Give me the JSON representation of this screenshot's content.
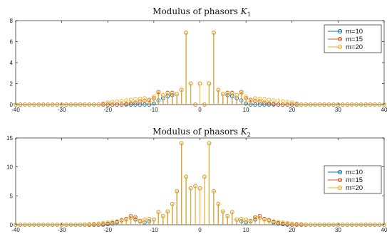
{
  "chart_data": [
    {
      "type": "stem",
      "title_prefix": "Modulus of phasors ",
      "title_symbol": "K",
      "title_subscript": "1",
      "xlim": [
        -40,
        40
      ],
      "ylim": [
        0,
        8
      ],
      "xticks": [
        "-40",
        "-30",
        "-20",
        "-10",
        "0",
        "10",
        "20",
        "30",
        "40"
      ],
      "yticks": [
        "0",
        "2",
        "4",
        "6",
        "8"
      ],
      "legend_position": "top-right",
      "x": [
        -40,
        -39,
        -38,
        -37,
        -36,
        -35,
        -34,
        -33,
        -32,
        -31,
        -30,
        -29,
        -28,
        -27,
        -26,
        -25,
        -24,
        -23,
        -22,
        -21,
        -20,
        -19,
        -18,
        -17,
        -16,
        -15,
        -14,
        -13,
        -12,
        -11,
        -10,
        -9,
        -8,
        -7,
        -6,
        -5,
        -4,
        -3,
        -2,
        -1,
        0,
        1,
        2,
        3,
        4,
        5,
        6,
        7,
        8,
        9,
        10,
        11,
        12,
        13,
        14,
        15,
        16,
        17,
        18,
        19,
        20,
        21,
        22,
        23,
        24,
        25,
        26,
        27,
        28,
        29,
        30,
        31,
        32,
        33,
        34,
        35,
        36,
        37,
        38,
        39,
        40
      ],
      "series": [
        {
          "name": "m=10",
          "color": "#0072BD",
          "values": [
            0,
            0,
            0,
            0,
            0,
            0,
            0,
            0,
            0,
            0,
            0,
            0,
            0,
            0,
            0,
            0,
            0,
            0,
            0,
            0,
            0,
            0,
            0,
            0,
            0,
            0,
            0,
            0,
            0,
            0,
            0.1,
            0.4,
            0.6,
            0.8,
            0.9,
            1.0,
            1.4,
            6.85,
            2.0,
            0,
            2.0,
            0,
            2.0,
            6.85,
            1.4,
            1.0,
            0.9,
            0.8,
            0.6,
            0.4,
            0.1,
            0,
            0,
            0,
            0,
            0,
            0,
            0,
            0,
            0,
            0,
            0,
            0,
            0,
            0,
            0,
            0,
            0,
            0,
            0,
            0,
            0,
            0,
            0,
            0,
            0,
            0,
            0,
            0,
            0,
            0
          ]
        },
        {
          "name": "m=15",
          "color": "#D95319",
          "values": [
            0,
            0,
            0,
            0,
            0,
            0,
            0,
            0,
            0,
            0,
            0,
            0,
            0,
            0,
            0,
            0,
            0,
            0,
            0,
            0,
            0,
            0,
            0,
            0,
            0.05,
            0.1,
            0.2,
            0.3,
            0.35,
            0.45,
            0.6,
            1.2,
            0.9,
            1.1,
            1.1,
            1.0,
            1.4,
            6.85,
            2.0,
            0,
            2.0,
            0,
            2.0,
            6.85,
            1.4,
            1.0,
            1.1,
            1.1,
            0.9,
            1.2,
            0.6,
            0.45,
            0.35,
            0.3,
            0.2,
            0.1,
            0.05,
            0,
            0,
            0,
            0,
            0,
            0,
            0,
            0,
            0,
            0,
            0,
            0,
            0,
            0,
            0,
            0,
            0,
            0,
            0,
            0,
            0,
            0,
            0,
            0
          ]
        },
        {
          "name": "m=20",
          "color": "#EDB120",
          "values": [
            0,
            0,
            0,
            0,
            0,
            0,
            0,
            0,
            0,
            0,
            0,
            0,
            0,
            0,
            0,
            0,
            0,
            0,
            0,
            0.1,
            0.2,
            0.25,
            0.3,
            0.35,
            0.4,
            0.45,
            0.5,
            0.55,
            0.6,
            0.3,
            0.75,
            1.05,
            0.9,
            1.15,
            1.15,
            1.0,
            1.4,
            6.85,
            2.0,
            0,
            2.0,
            0,
            2.0,
            6.85,
            1.4,
            1.0,
            1.15,
            1.15,
            0.9,
            1.05,
            0.75,
            0.3,
            0.6,
            0.55,
            0.5,
            0.45,
            0.4,
            0.35,
            0.3,
            0.25,
            0.2,
            0.1,
            0,
            0,
            0,
            0,
            0,
            0,
            0,
            0,
            0,
            0,
            0,
            0,
            0,
            0,
            0,
            0,
            0,
            0,
            0
          ]
        }
      ]
    },
    {
      "type": "stem",
      "title_prefix": "Modulus of phasors ",
      "title_symbol": "K",
      "title_subscript": "2",
      "xlim": [
        -40,
        40
      ],
      "ylim": [
        0,
        15
      ],
      "xticks": [
        "-40",
        "-30",
        "-20",
        "-10",
        "0",
        "10",
        "20",
        "30",
        "40"
      ],
      "yticks": [
        "0",
        "5",
        "10",
        "15"
      ],
      "legend_position": "top-right",
      "x": [
        -40,
        -39,
        -38,
        -37,
        -36,
        -35,
        -34,
        -33,
        -32,
        -31,
        -30,
        -29,
        -28,
        -27,
        -26,
        -25,
        -24,
        -23,
        -22,
        -21,
        -20,
        -19,
        -18,
        -17,
        -16,
        -15,
        -14,
        -13,
        -12,
        -11,
        -10,
        -9,
        -8,
        -7,
        -6,
        -5,
        -4,
        -3,
        -2,
        -1,
        0,
        1,
        2,
        3,
        4,
        5,
        6,
        7,
        8,
        9,
        10,
        11,
        12,
        13,
        14,
        15,
        16,
        17,
        18,
        19,
        20,
        21,
        22,
        23,
        24,
        25,
        26,
        27,
        28,
        29,
        30,
        31,
        32,
        33,
        34,
        35,
        36,
        37,
        38,
        39,
        40
      ],
      "series": [
        {
          "name": "m=10",
          "color": "#0072BD",
          "values": [
            0,
            0,
            0,
            0,
            0,
            0,
            0,
            0,
            0,
            0,
            0,
            0,
            0,
            0,
            0,
            0,
            0,
            0,
            0,
            0,
            0.1,
            0.2,
            0.4,
            0.8,
            1.0,
            1.2,
            0.9,
            0.6,
            0.4,
            0.6,
            0.9,
            2.2,
            1.5,
            2.3,
            3.6,
            5.8,
            14.1,
            8.3,
            6.3,
            6.7,
            6.3,
            8.3,
            14.1,
            5.8,
            3.6,
            2.3,
            1.5,
            2.2,
            0.9,
            0.6,
            0.4,
            0.6,
            0.9,
            1.2,
            1.0,
            0.8,
            0.4,
            0.2,
            0.1,
            0,
            0,
            0,
            0,
            0,
            0,
            0,
            0,
            0,
            0,
            0,
            0,
            0,
            0,
            0,
            0,
            0,
            0,
            0,
            0,
            0,
            0
          ]
        },
        {
          "name": "m=15",
          "color": "#D95319",
          "values": [
            0,
            0,
            0,
            0,
            0,
            0,
            0,
            0,
            0,
            0,
            0,
            0,
            0,
            0,
            0,
            0,
            0,
            0,
            0,
            0.1,
            0.2,
            0.3,
            0.5,
            0.8,
            1.0,
            1.5,
            1.3,
            0.6,
            0.9,
            1.0,
            0.9,
            2.2,
            1.5,
            2.3,
            3.6,
            5.8,
            14.1,
            8.3,
            6.3,
            6.7,
            6.3,
            8.3,
            14.1,
            5.8,
            3.6,
            2.3,
            1.5,
            2.2,
            0.9,
            1.0,
            0.9,
            0.6,
            1.3,
            1.5,
            1.0,
            0.8,
            0.5,
            0.3,
            0.2,
            0.1,
            0,
            0,
            0,
            0,
            0,
            0,
            0,
            0,
            0,
            0,
            0,
            0,
            0,
            0,
            0,
            0,
            0,
            0,
            0,
            0,
            0
          ]
        },
        {
          "name": "m=20",
          "color": "#EDB120",
          "values": [
            0,
            0,
            0,
            0,
            0,
            0,
            0,
            0,
            0,
            0,
            0,
            0,
            0,
            0,
            0,
            0.05,
            0.1,
            0.15,
            0.2,
            0.3,
            0.4,
            0.5,
            0.6,
            0.7,
            0.9,
            1.2,
            1.1,
            0.7,
            0.9,
            1.0,
            0.9,
            2.2,
            1.5,
            2.3,
            3.6,
            5.8,
            14.1,
            8.3,
            6.3,
            6.7,
            6.3,
            8.3,
            14.1,
            5.8,
            3.6,
            2.3,
            1.5,
            2.2,
            0.9,
            1.0,
            0.9,
            0.7,
            1.1,
            1.2,
            0.9,
            0.7,
            0.6,
            0.5,
            0.4,
            0.3,
            0.2,
            0.15,
            0.1,
            0.05,
            0,
            0,
            0,
            0,
            0,
            0,
            0,
            0,
            0,
            0,
            0,
            0,
            0,
            0,
            0,
            0,
            0
          ]
        }
      ]
    }
  ]
}
